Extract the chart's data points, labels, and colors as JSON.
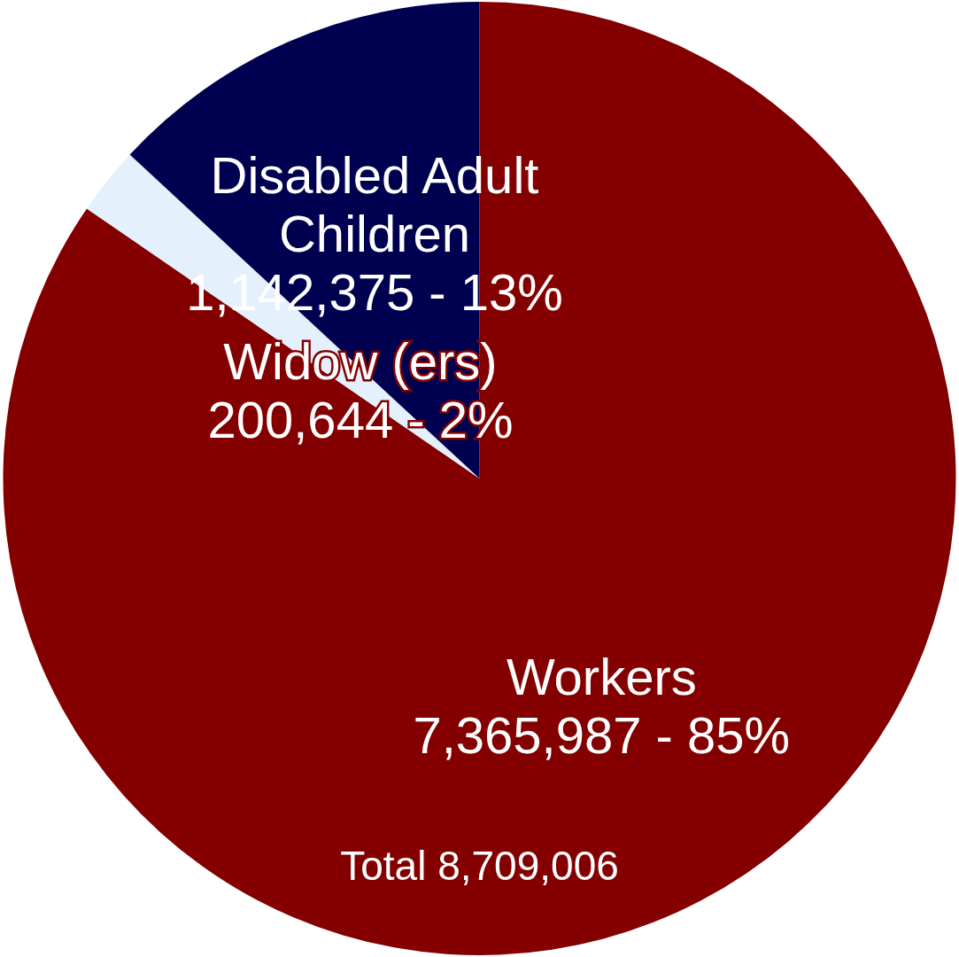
{
  "chart_data": {
    "type": "pie",
    "categories": [
      "Workers",
      "Widow (ers)",
      "Disabled Adult Children"
    ],
    "values": [
      7365987,
      200644,
      1142375
    ],
    "value_labels": [
      "7,365,987 - 85%",
      "200,644 - 2%",
      "1,142,375 - 13%"
    ],
    "colors": [
      "#840000",
      "#e4f0fc",
      "#000050"
    ],
    "annotations": [
      "Total 8,709,006"
    ],
    "legend": false
  }
}
